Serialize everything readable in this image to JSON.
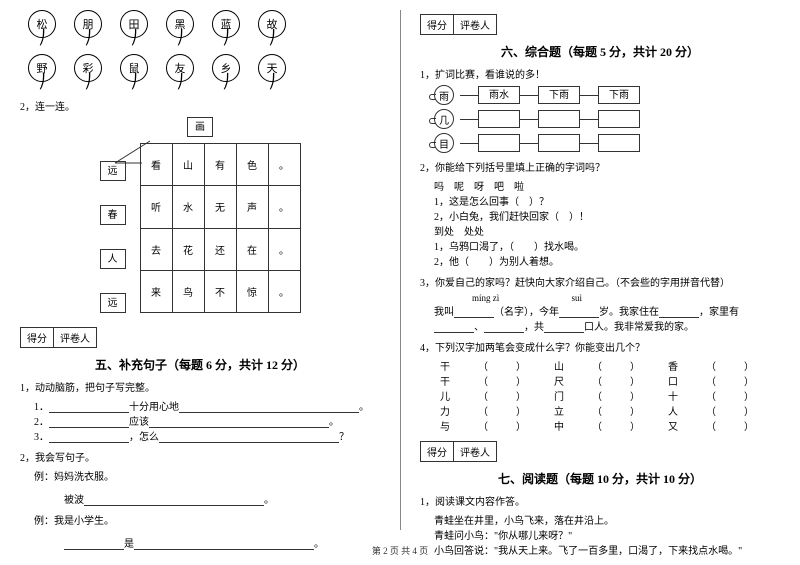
{
  "footer": "第 2 页 共 4 页",
  "left": {
    "balloons_row1": [
      "松",
      "朋",
      "田",
      "黑",
      "蓝",
      "故"
    ],
    "balloons_row2": [
      "野",
      "彩",
      "鼠",
      "友",
      "乡",
      "天"
    ],
    "q2": "2，连一连。",
    "top_cell": "画",
    "side_cells": [
      "远",
      "春",
      "人",
      "远"
    ],
    "grid": [
      [
        "看",
        "山",
        "有",
        "色",
        "。"
      ],
      [
        "听",
        "水",
        "无",
        "声",
        "。"
      ],
      [
        "去",
        "花",
        "还",
        "在",
        "。"
      ],
      [
        "来",
        "鸟",
        "不",
        "惊",
        "。"
      ]
    ],
    "score_label1": "得分",
    "score_label2": "评卷人",
    "section5": "五、补充句子（每题 6 分，共计 12 分）",
    "q5_1": "1，动动脑筋，把句子写完整。",
    "line1_a": "1．",
    "line1_b": "十分用心地",
    "line2_a": "2．",
    "line2_b": "应该",
    "line3_a": "3．",
    "line3_b": "，怎么",
    "tail": "？",
    "q5_2": "2，我会写句子。",
    "ex_label": "例：",
    "ex1": "妈妈洗衣服。",
    "bb": "被波",
    "ex2": "例：我是小学生。",
    "is_char": "是"
  },
  "right": {
    "score_label1": "得分",
    "score_label2": "评卷人",
    "section6": "六、综合题（每题 5 分，共计 20 分）",
    "q1": "1，扩词比赛，看谁说的多！",
    "chains": [
      {
        "start": "雨",
        "boxes": [
          "雨水",
          "下雨",
          "下雨"
        ]
      },
      {
        "start": "几",
        "boxes": [
          "",
          "",
          ""
        ]
      },
      {
        "start": "目",
        "boxes": [
          "",
          "",
          ""
        ]
      }
    ],
    "q2": "2，你能给下列括号里填上正确的字词吗？",
    "q2_opts": "吗　呢　呀　吧　啦",
    "q2_1": "1，这是怎么回事（　）？",
    "q2_2": "2，小白兔，我们赶快回家（　）！",
    "q2_opts2": "到处　处处",
    "q2_3": "1，乌鸦口渴了，（　　）找水喝。",
    "q2_4": "2，他（　　）为别人着想。",
    "q3": "3，你爱自己的家吗？赶快向大家介绍自己。（不会些的字用拼音代替）",
    "pinyin1": "míng zì",
    "pinyin2": "suì",
    "q3_line1a": "我叫",
    "q3_line1b": "（名字），今年",
    "q3_line1c": "岁。我家住在",
    "q3_line1d": "，家里有",
    "q3_line2a": "、",
    "q3_line2b": "，共",
    "q3_line2c": "口人。我非常爱我的家。",
    "q4": "4，下列汉字加两笔会变成什么字？你能变出几个？",
    "char_rows": [
      [
        "干",
        "（",
        "）",
        "山",
        "（",
        "）",
        "香",
        "（",
        "）"
      ],
      [
        "干",
        "（",
        "）",
        "尺",
        "（",
        "）",
        "口",
        "（",
        "）"
      ],
      [
        "儿",
        "（",
        "）",
        "门",
        "（",
        "）",
        "十",
        "（",
        "）"
      ],
      [
        "力",
        "（",
        "）",
        "立",
        "（",
        "）",
        "人",
        "（",
        "）"
      ],
      [
        "与",
        "（",
        "）",
        "中",
        "（",
        "）",
        "又",
        "（",
        "）"
      ]
    ],
    "section7": "七、阅读题（每题 10 分，共计 10 分）",
    "q7_1": "1，阅读课文内容作答。",
    "passage": [
      "青蛙坐在井里，小鸟飞来，落在井沿上。",
      "青蛙问小鸟：\"你从哪儿来呀？\"",
      "小鸟回答说：\"我从天上来。飞了一百多里，口渴了，下来找点水喝。\""
    ]
  }
}
